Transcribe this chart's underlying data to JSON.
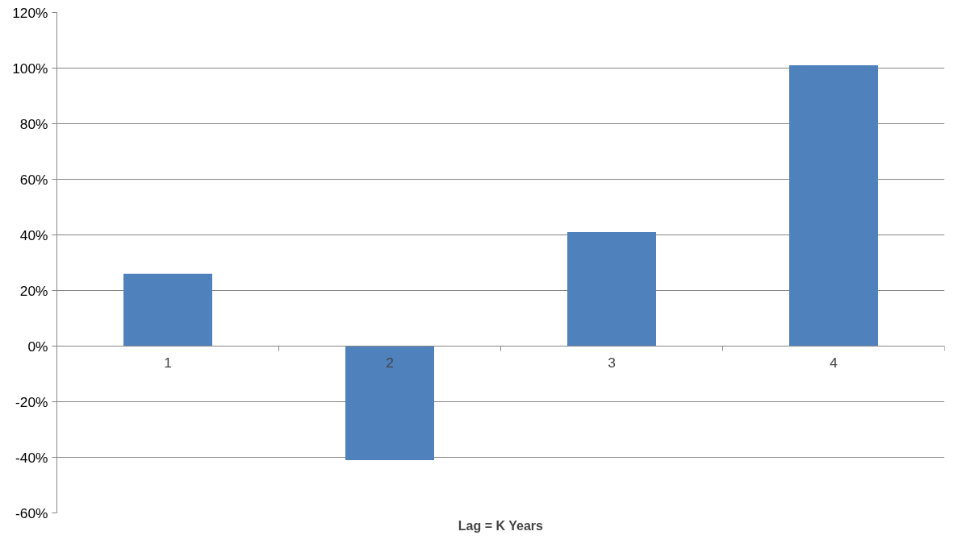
{
  "chart_data": {
    "type": "bar",
    "xlabel": "Lag = K Years",
    "categories": [
      "1",
      "2",
      "3",
      "4"
    ],
    "values": [
      26,
      -41,
      41,
      101
    ],
    "color": "#4f81bd",
    "ylim": [
      -60,
      120
    ],
    "yticks": [
      {
        "value": -60,
        "label": "-60%"
      },
      {
        "value": -40,
        "label": "-40%"
      },
      {
        "value": -20,
        "label": "-20%"
      },
      {
        "value": 0,
        "label": "0%"
      },
      {
        "value": 20,
        "label": "20%"
      },
      {
        "value": 40,
        "label": "40%"
      },
      {
        "value": 60,
        "label": "60%"
      },
      {
        "value": 80,
        "label": "80%"
      },
      {
        "value": 100,
        "label": "100%"
      },
      {
        "value": 120,
        "label": "120%"
      }
    ],
    "grid": "y"
  }
}
